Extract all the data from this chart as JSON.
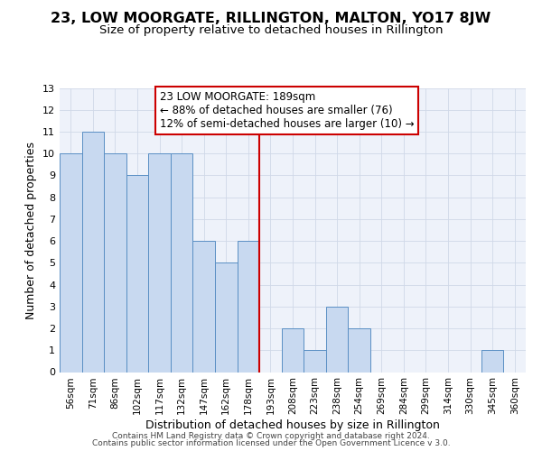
{
  "title": "23, LOW MOORGATE, RILLINGTON, MALTON, YO17 8JW",
  "subtitle": "Size of property relative to detached houses in Rillington",
  "xlabel": "Distribution of detached houses by size in Rillington",
  "ylabel": "Number of detached properties",
  "bar_labels": [
    "56sqm",
    "71sqm",
    "86sqm",
    "102sqm",
    "117sqm",
    "132sqm",
    "147sqm",
    "162sqm",
    "178sqm",
    "193sqm",
    "208sqm",
    "223sqm",
    "238sqm",
    "254sqm",
    "269sqm",
    "284sqm",
    "299sqm",
    "314sqm",
    "330sqm",
    "345sqm",
    "360sqm"
  ],
  "bar_values": [
    10,
    11,
    10,
    9,
    10,
    10,
    6,
    5,
    6,
    0,
    2,
    1,
    3,
    2,
    0,
    0,
    0,
    0,
    0,
    1,
    0
  ],
  "bar_color": "#c8d9f0",
  "bar_edgecolor": "#5a8fc4",
  "vline_x": 8.5,
  "vline_color": "#cc0000",
  "annotation_line1": "23 LOW MOORGATE: 189sqm",
  "annotation_line2": "← 88% of detached houses are smaller (76)",
  "annotation_line3": "12% of semi-detached houses are larger (10) →",
  "annotation_box_color": "#cc0000",
  "ylim": [
    0,
    13
  ],
  "yticks": [
    0,
    1,
    2,
    3,
    4,
    5,
    6,
    7,
    8,
    9,
    10,
    11,
    12,
    13
  ],
  "footer_line1": "Contains HM Land Registry data © Crown copyright and database right 2024.",
  "footer_line2": "Contains public sector information licensed under the Open Government Licence v 3.0.",
  "title_fontsize": 11.5,
  "subtitle_fontsize": 9.5,
  "xlabel_fontsize": 9,
  "ylabel_fontsize": 9,
  "annotation_fontsize": 8.5,
  "footer_fontsize": 6.5,
  "bar_tick_fontsize": 7.5,
  "ytick_fontsize": 8,
  "background_color": "#eef2fa"
}
